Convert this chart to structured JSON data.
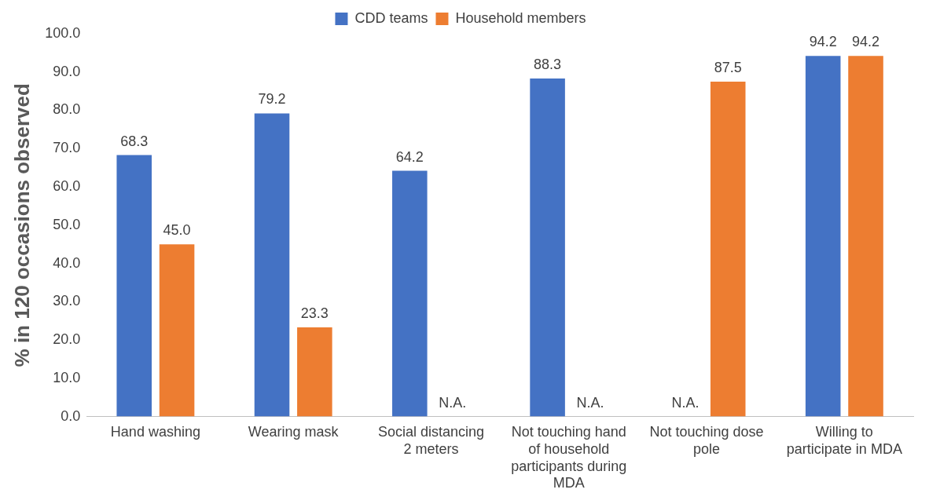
{
  "chart_data": {
    "type": "bar",
    "ylabel": "% in 120 occasions observed",
    "categories": [
      "Hand washing",
      "Wearing mask",
      "Social distancing 2 meters",
      "Not touching hand of household participants during MDA",
      "Not touching dose pole",
      "Willing to participate in MDA"
    ],
    "series": [
      {
        "name": "CDD teams",
        "color": "#4472c4",
        "values": [
          68.3,
          79.2,
          64.2,
          88.3,
          null,
          94.2
        ],
        "value_labels": [
          "68.3",
          "79.2",
          "64.2",
          "88.3",
          "N.A.",
          "94.2"
        ]
      },
      {
        "name": "Household members",
        "color": "#ed7d31",
        "values": [
          45.0,
          23.3,
          null,
          null,
          87.5,
          94.2
        ],
        "value_labels": [
          "45.0",
          "23.3",
          "N.A.",
          "N.A.",
          "87.5",
          "94.2"
        ]
      }
    ],
    "ylim": [
      0,
      100
    ],
    "yticks": [
      {
        "value": 0,
        "label": "0.0"
      },
      {
        "value": 10,
        "label": "10.0"
      },
      {
        "value": 20,
        "label": "20.0"
      },
      {
        "value": 30,
        "label": "30.0"
      },
      {
        "value": 40,
        "label": "40.0"
      },
      {
        "value": 50,
        "label": "50.0"
      },
      {
        "value": 60,
        "label": "60.0"
      },
      {
        "value": 70,
        "label": "70.0"
      },
      {
        "value": 80,
        "label": "80.0"
      },
      {
        "value": 90,
        "label": "90.0"
      },
      {
        "value": 100,
        "label": "100.0"
      }
    ],
    "grid": false,
    "legend": "top"
  }
}
